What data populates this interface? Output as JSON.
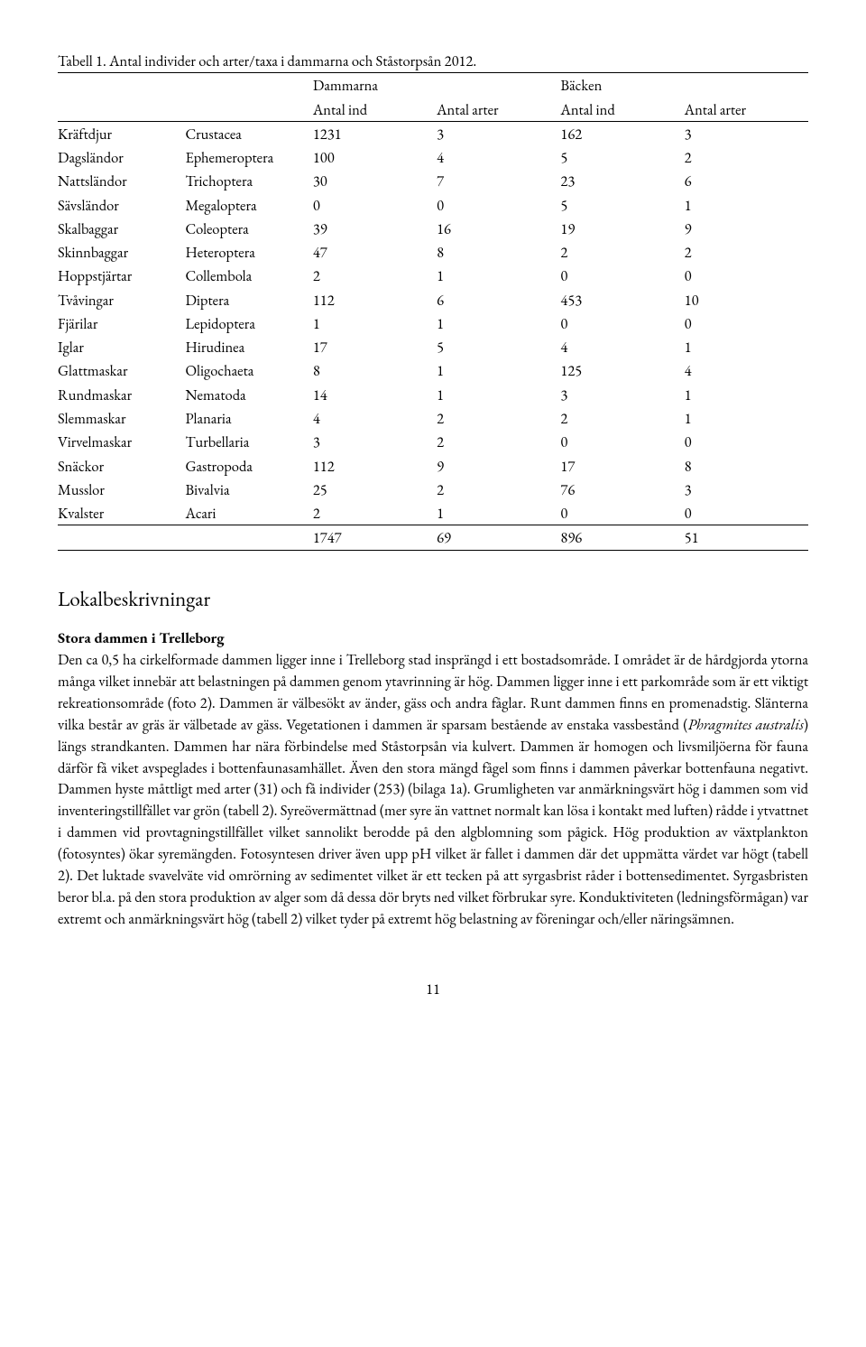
{
  "caption": "Tabell 1. Antal individer och arter/taxa i dammarna och Ståstorpsån 2012.",
  "table": {
    "group_headers": {
      "col1": "Dammarna",
      "col2": "Bäcken"
    },
    "sub_headers": [
      "Antal ind",
      "Antal arter",
      "Antal ind",
      "Antal arter"
    ],
    "rows": [
      {
        "group": "Kräftdjur",
        "taxon": "Crustacea",
        "v": [
          "1231",
          "3",
          "162",
          "3"
        ]
      },
      {
        "group": "Dagsländor",
        "taxon": "Ephemeroptera",
        "v": [
          "100",
          "4",
          "5",
          "2"
        ]
      },
      {
        "group": "Nattsländor",
        "taxon": "Trichoptera",
        "v": [
          "30",
          "7",
          "23",
          "6"
        ]
      },
      {
        "group": "Sävsländor",
        "taxon": "Megaloptera",
        "v": [
          "0",
          "0",
          "5",
          "1"
        ]
      },
      {
        "group": "Skalbaggar",
        "taxon": "Coleoptera",
        "v": [
          "39",
          "16",
          "19",
          "9"
        ]
      },
      {
        "group": "Skinnbaggar",
        "taxon": "Heteroptera",
        "v": [
          "47",
          "8",
          "2",
          "2"
        ]
      },
      {
        "group": "Hoppstjärtar",
        "taxon": "Collembola",
        "v": [
          "2",
          "1",
          "0",
          "0"
        ]
      },
      {
        "group": "Tvåvingar",
        "taxon": "Diptera",
        "v": [
          "112",
          "6",
          "453",
          "10"
        ]
      },
      {
        "group": "Fjärilar",
        "taxon": "Lepidoptera",
        "v": [
          "1",
          "1",
          "0",
          "0"
        ]
      },
      {
        "group": "Iglar",
        "taxon": "Hirudinea",
        "v": [
          "17",
          "5",
          "4",
          "1"
        ]
      },
      {
        "group": "Glattmaskar",
        "taxon": "Oligochaeta",
        "v": [
          "8",
          "1",
          "125",
          "4"
        ]
      },
      {
        "group": "Rundmaskar",
        "taxon": "Nematoda",
        "v": [
          "14",
          "1",
          "3",
          "1"
        ]
      },
      {
        "group": "Slemmaskar",
        "taxon": "Planaria",
        "v": [
          "4",
          "2",
          "2",
          "1"
        ]
      },
      {
        "group": "Virvelmaskar",
        "taxon": "Turbellaria",
        "v": [
          "3",
          "2",
          "0",
          "0"
        ]
      },
      {
        "group": "Snäckor",
        "taxon": "Gastropoda",
        "v": [
          "112",
          "9",
          "17",
          "8"
        ]
      },
      {
        "group": "Musslor",
        "taxon": "Bivalvia",
        "v": [
          "25",
          "2",
          "76",
          "3"
        ]
      },
      {
        "group": "Kvalster",
        "taxon": "Acari",
        "v": [
          "2",
          "1",
          "0",
          "0"
        ]
      }
    ],
    "totals": [
      "1747",
      "69",
      "896",
      "51"
    ]
  },
  "section_heading": "Lokalbeskrivningar",
  "sub_heading": "Stora dammen i Trelleborg",
  "body_pre": "Den ca 0,5 ha cirkelformade dammen ligger inne i Trelleborg stad insprängd i ett bostadsområde. I området är de hårdgjorda ytorna många vilket innebär att belastningen på dammen genom ytavrinning är hög. Dammen ligger inne i ett parkområde som är ett viktigt rekreationsområde (foto 2). Dammen är välbesökt av änder, gäss och andra fåglar. Runt dammen finns en promenadstig. Slänterna vilka består av gräs är välbetade av gäss. Vegetationen i dammen är sparsam bestående av enstaka vassbestånd (",
  "body_italic": "Phragmites australis",
  "body_post": ") längs strandkanten. Dammen har nära förbindelse med Ståstorpsån via kulvert. Dammen är homogen och livsmiljöerna för fauna därför få viket avspeglades i bottenfaunasamhället. Även den stora mängd fågel som finns i dammen påverkar bottenfauna negativt. Dammen hyste måttligt med arter (31) och få individer (253) (bilaga 1a). Grumligheten var anmärkningsvärt hög i dammen som vid inventeringstillfället var grön (tabell 2). Syreövermättnad (mer syre än vattnet normalt kan lösa i kontakt med luften) rådde i ytvattnet i dammen vid provtagningstillfället vilket sannolikt berodde på den algblomning som pågick. Hög produktion av växtplankton (fotosyntes) ökar syremängden. Fotosyntesen driver även upp pH vilket är fallet i dammen där det uppmätta värdet var högt (tabell 2). Det luktade svavelväte vid omrörning av sedimentet vilket är ett tecken på att syrgasbrist råder i bottensedimentet. Syrgasbristen beror bl.a. på den stora produktion av alger som då dessa dör bryts ned vilket förbrukar syre. Konduktiviteten (ledningsförmågan) var extremt och anmärkningsvärt hög (tabell 2) vilket tyder på extremt hög belastning av föreningar och/eller näringsämnen.",
  "page_number": "11"
}
